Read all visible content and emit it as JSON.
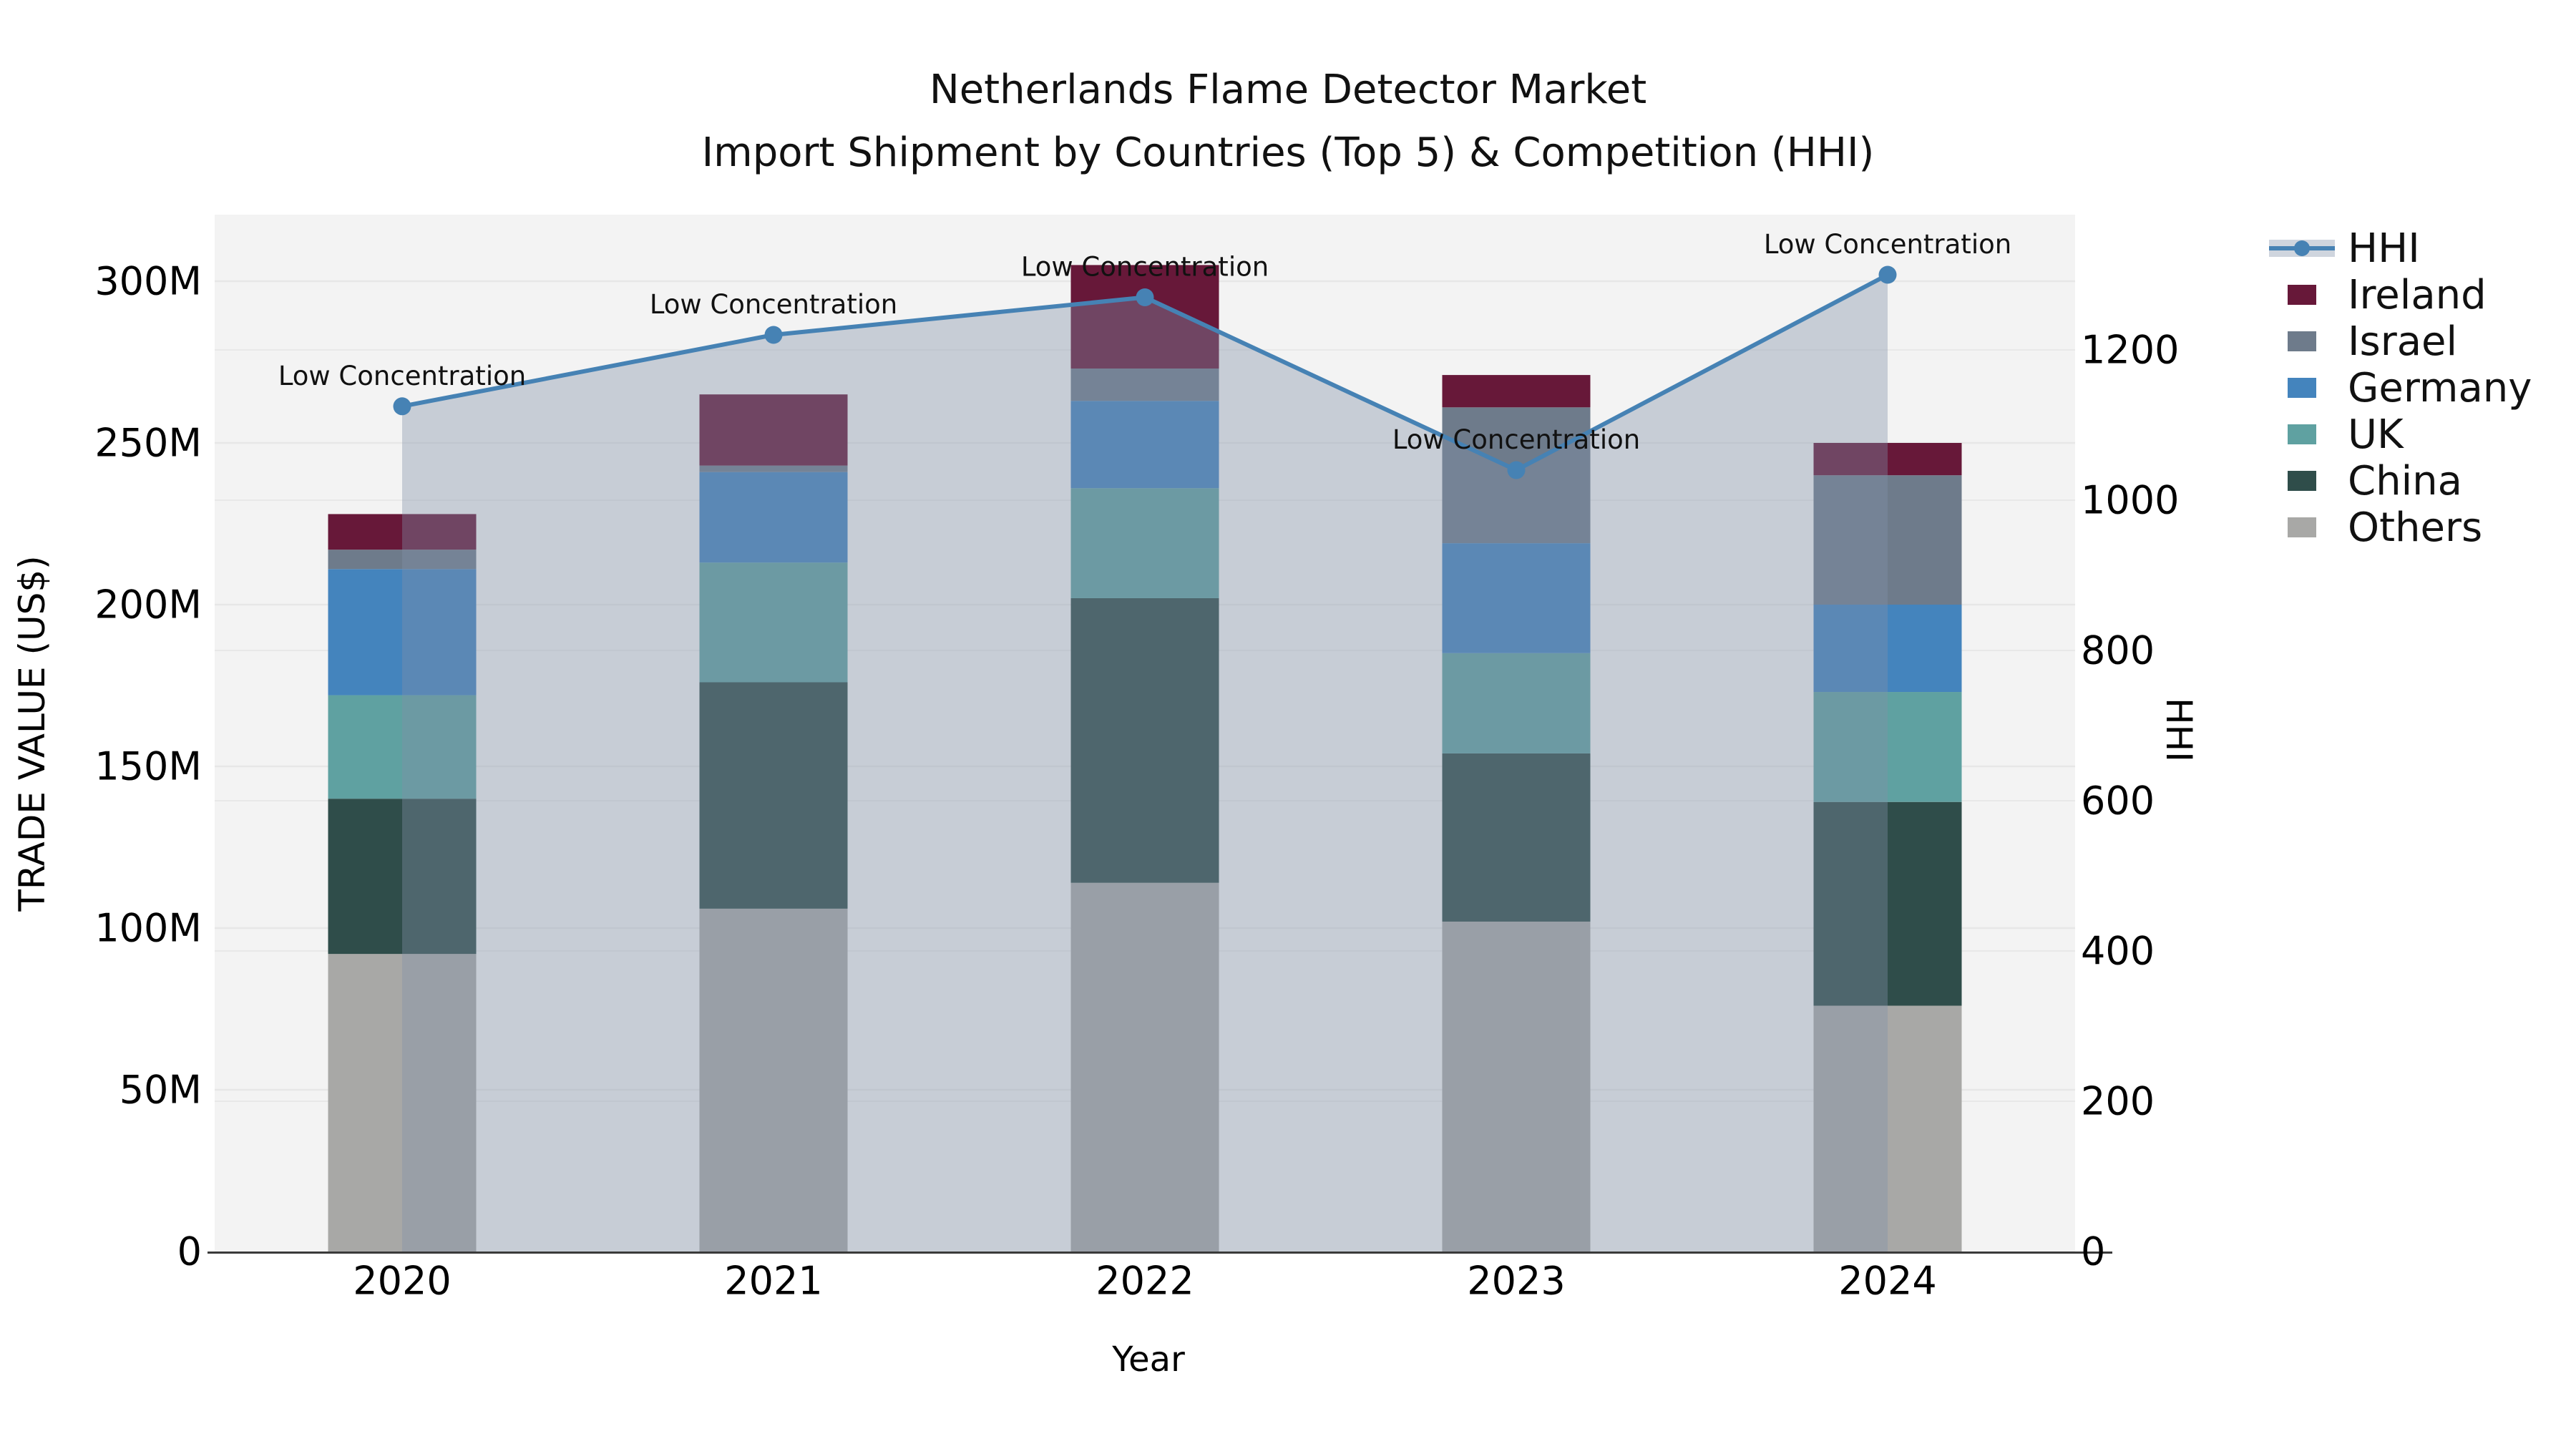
{
  "title": {
    "line1": "Netherlands Flame Detector Market",
    "line2": "Import Shipment by Countries (Top 5) & Competition (HHI)"
  },
  "left_axis": {
    "label": "TRADE VALUE (US$)",
    "ticks": [
      {
        "value": 0,
        "label": "0"
      },
      {
        "value": 50,
        "label": "50M"
      },
      {
        "value": 100,
        "label": "100M"
      },
      {
        "value": 150,
        "label": "150M"
      },
      {
        "value": 200,
        "label": "200M"
      },
      {
        "value": 250,
        "label": "250M"
      },
      {
        "value": 300,
        "label": "300M"
      }
    ]
  },
  "right_axis": {
    "label": "HHI",
    "ticks": [
      {
        "value": 0,
        "label": "0"
      },
      {
        "value": 200,
        "label": "200"
      },
      {
        "value": 400,
        "label": "400"
      },
      {
        "value": 600,
        "label": "600"
      },
      {
        "value": 800,
        "label": "800"
      },
      {
        "value": 1000,
        "label": "1000"
      },
      {
        "value": 1200,
        "label": "1200"
      }
    ]
  },
  "x_axis": {
    "label": "Year",
    "categories": [
      "2020",
      "2021",
      "2022",
      "2023",
      "2024"
    ]
  },
  "legend": {
    "order": [
      "HHI",
      "Ireland",
      "Israel",
      "Germany",
      "UK",
      "China",
      "Others"
    ]
  },
  "chart_data": {
    "type": "bar+line",
    "unit": "trade value in million US$ (left axis), HHI index (right axis)",
    "categories": [
      "2020",
      "2021",
      "2022",
      "2023",
      "2024"
    ],
    "stack_order_bottom_to_top": [
      "Others",
      "China",
      "UK",
      "Germany",
      "Israel",
      "Ireland"
    ],
    "series": [
      {
        "name": "Others",
        "color": "#a8a8a6",
        "values": [
          92,
          106,
          114,
          102,
          76
        ]
      },
      {
        "name": "China",
        "color": "#2f4d4a",
        "values": [
          48,
          70,
          88,
          52,
          63
        ]
      },
      {
        "name": "UK",
        "color": "#5fa1a1",
        "values": [
          32,
          37,
          34,
          31,
          34
        ]
      },
      {
        "name": "Germany",
        "color": "#4484bd",
        "values": [
          39,
          28,
          27,
          34,
          27
        ]
      },
      {
        "name": "Israel",
        "color": "#6e7b8b",
        "values": [
          6,
          2,
          10,
          42,
          40
        ]
      },
      {
        "name": "Ireland",
        "color": "#671839",
        "values": [
          11,
          22,
          32,
          10,
          10
        ]
      }
    ],
    "bar_totals": [
      228,
      265,
      305,
      271,
      250
    ],
    "hhi_line": {
      "name": "HHI",
      "values": [
        1125,
        1220,
        1270,
        1040,
        1300
      ],
      "annotations": [
        "Low Concentration",
        "Low Concentration",
        "Low Concentration",
        "Low Concentration",
        "Low Concentration"
      ]
    },
    "left_ylim": [
      0,
      310
    ],
    "right_ylim": [
      0,
      1390
    ],
    "legend_position": "right",
    "grid": "horizontal-both-axes"
  },
  "colors": {
    "hhi_line": "#4682b4",
    "area_fill": "rgba(130,144,168,0.38)",
    "legend_band": "#cfd5de",
    "plot_bg": "#f3f3f3",
    "grid_value": "#e7e7e7",
    "grid_hhi": "rgba(0,0,0,0.045)",
    "axis_line": "#3a3a3a",
    "annotation_text": "#111111"
  }
}
